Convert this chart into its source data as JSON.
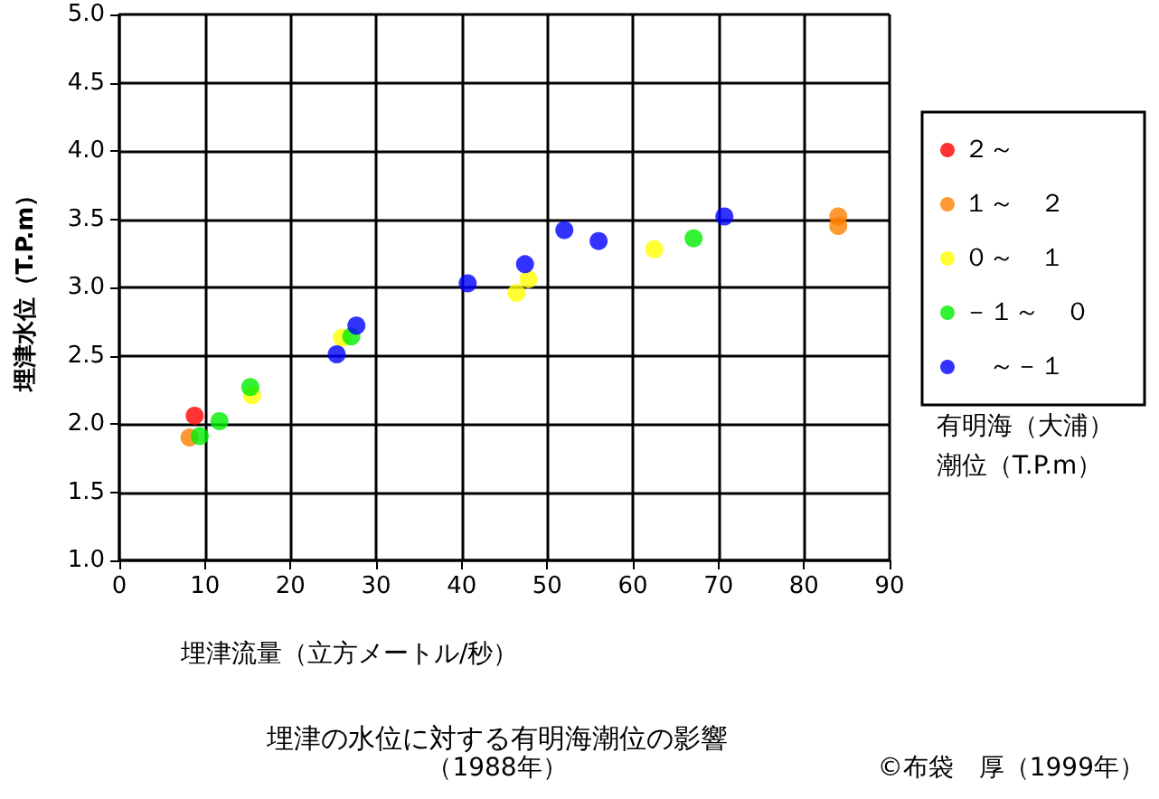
{
  "chart_data": {
    "type": "scatter",
    "title": "埋津の水位に対する有明海潮位の影響",
    "subtitle": "（1988年）",
    "xlabel": "埋津流量（立方メートル/秒）",
    "ylabel": "埋津水位（T.P.m）",
    "legend_title": "有明海（大浦）潮位（T.P.m）",
    "annotations": [
      "©布袋　厚（1999年）"
    ],
    "xlim": [
      0,
      90
    ],
    "xticks": [
      0,
      10,
      20,
      30,
      40,
      50,
      60,
      70,
      80,
      90
    ],
    "ylim": [
      1.0,
      5.0
    ],
    "yticks": [
      {
        "value": 1,
        "label": "1.0"
      },
      {
        "value": 1.5,
        "label": "1.5"
      },
      {
        "value": 2,
        "label": "2.0"
      },
      {
        "value": 2.5,
        "label": "2.5"
      },
      {
        "value": 3,
        "label": "3.0"
      },
      {
        "value": 3.5,
        "label": "3.5"
      },
      {
        "value": 4,
        "label": "4.0"
      },
      {
        "value": 4.5,
        "label": "4.5"
      },
      {
        "value": 5,
        "label": "5.0"
      }
    ],
    "grid": true,
    "legend": "right",
    "marker": "circle",
    "series": [
      {
        "name": "２～",
        "color": "#ff0000",
        "x": [
          8.8
        ],
        "values": [
          2.06
        ]
      },
      {
        "name": "１～　２",
        "color": "#ff8000",
        "x": [
          8.2,
          84.0,
          84.0
        ],
        "values": [
          1.9,
          3.52,
          3.45
        ]
      },
      {
        "name": "０～　１",
        "color": "#ffff00",
        "x": [
          15.5,
          26.0,
          46.4,
          47.8,
          62.5
        ],
        "values": [
          2.21,
          2.63,
          2.96,
          3.06,
          3.28
        ]
      },
      {
        "name": "－１～　０",
        "color": "#00ee00",
        "x": [
          9.4,
          11.7,
          15.3,
          27.1,
          67.1
        ],
        "values": [
          1.91,
          2.02,
          2.27,
          2.64,
          3.36
        ]
      },
      {
        "name": "　～－１",
        "color": "#0000ff",
        "x": [
          25.4,
          27.7,
          40.7,
          47.4,
          52.0,
          56.0,
          70.7
        ],
        "values": [
          2.51,
          2.72,
          3.03,
          3.17,
          3.42,
          3.34,
          3.52
        ]
      }
    ]
  }
}
